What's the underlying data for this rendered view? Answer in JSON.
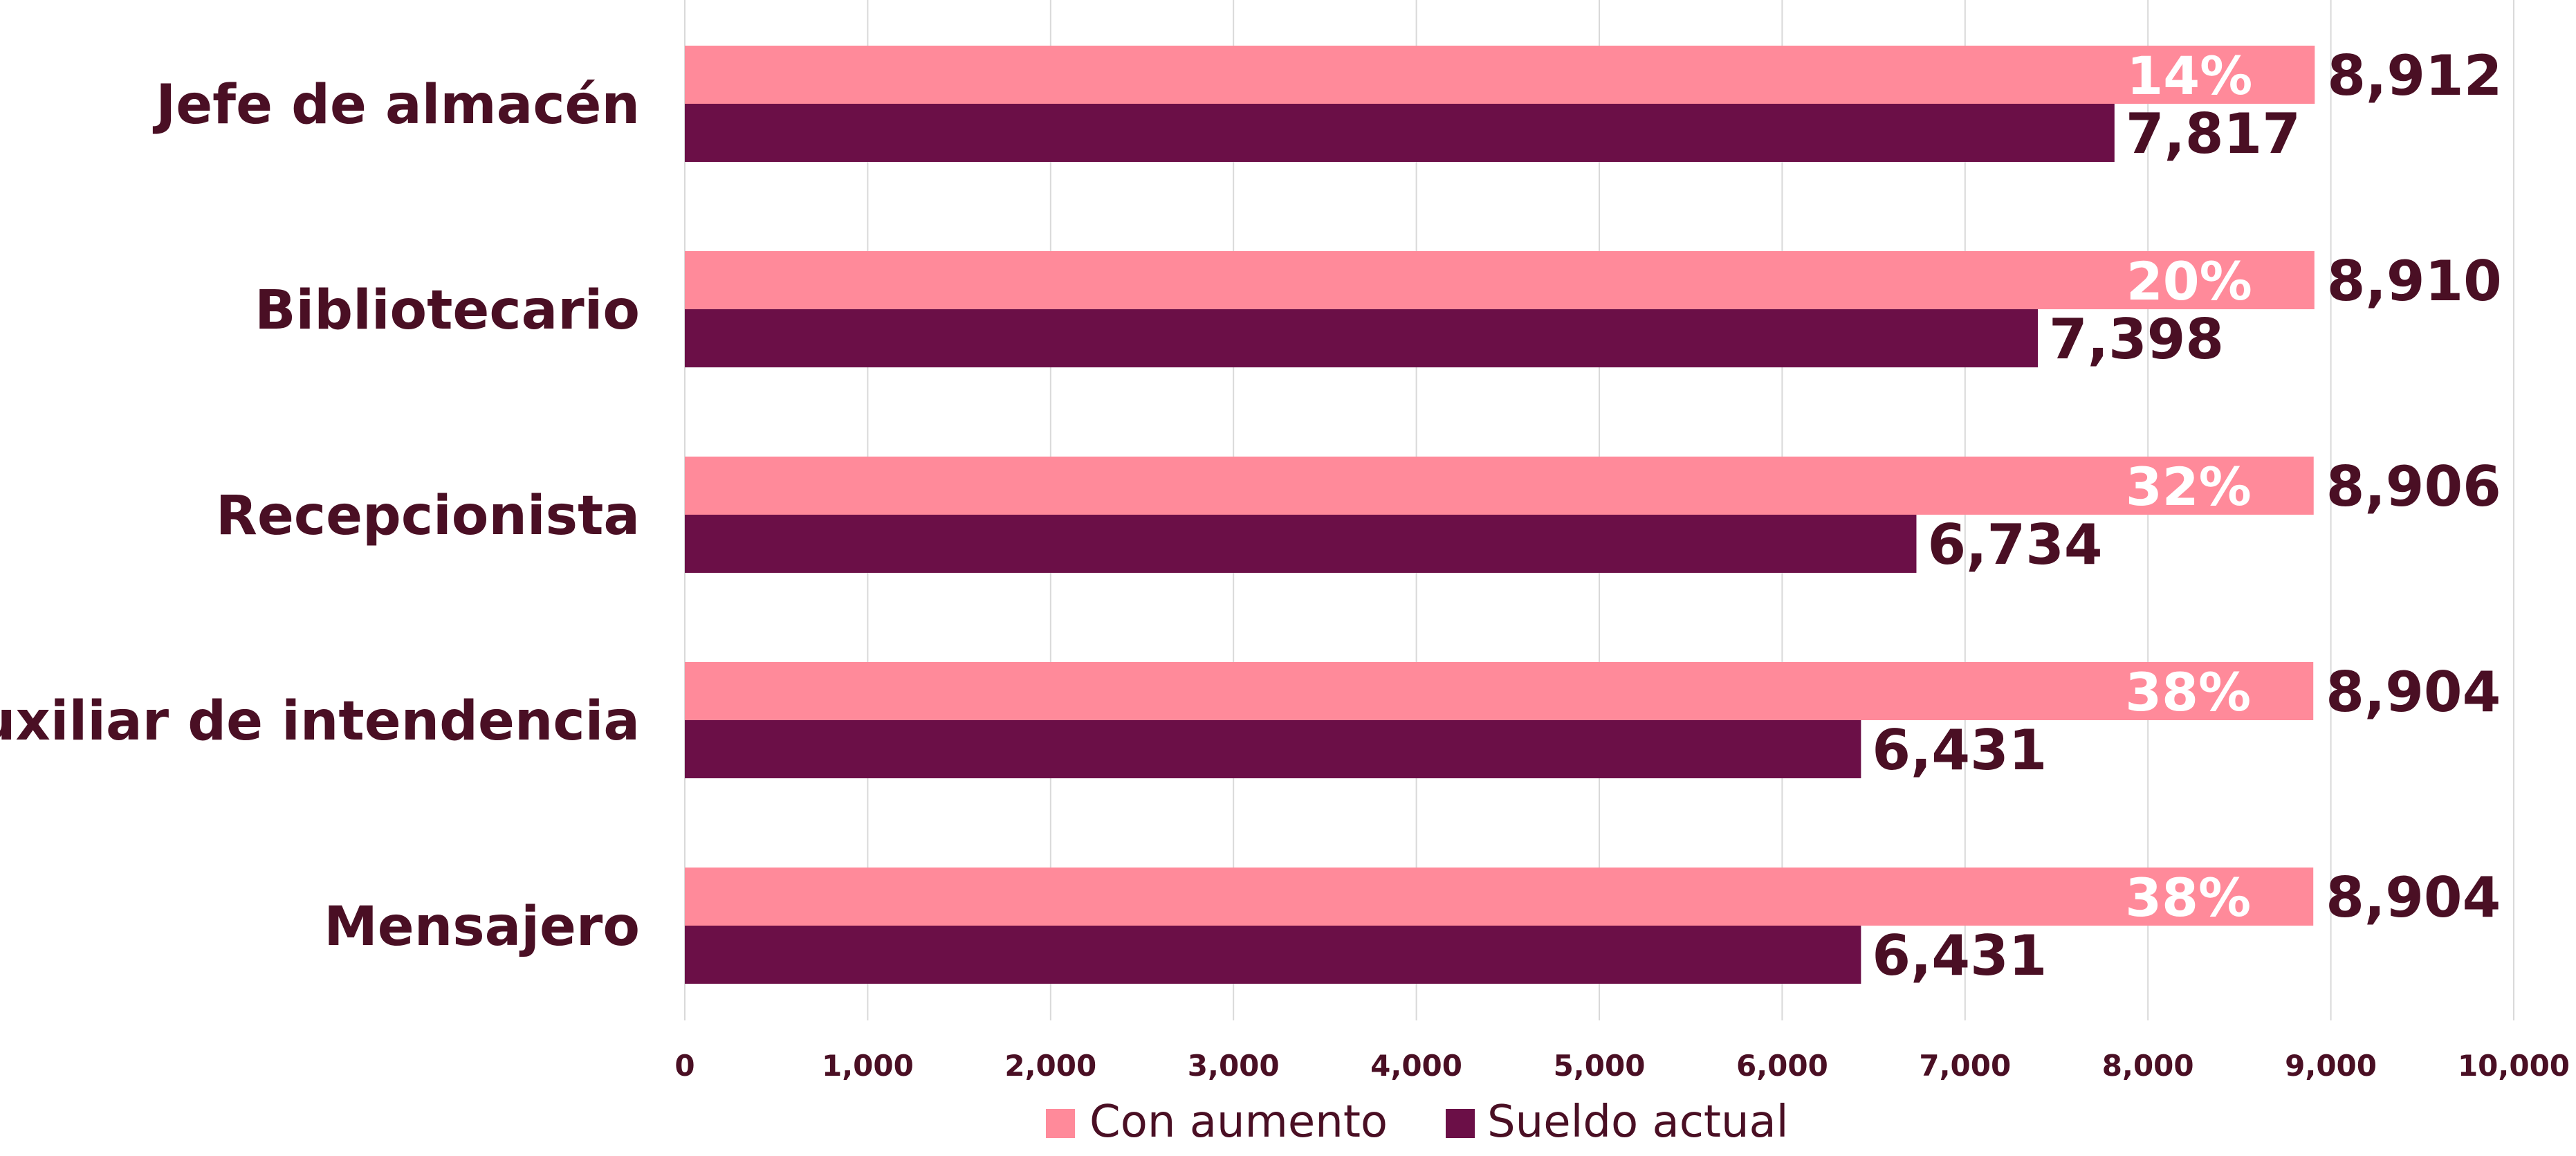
{
  "chart_data": {
    "type": "bar",
    "orientation": "horizontal",
    "categories": [
      "Jefe de almacén",
      "Bibliotecario",
      "Recepcionista",
      "Auxiliar de intendencia",
      "Mensajero"
    ],
    "series": [
      {
        "name": "Con aumento",
        "color": "#ff8a9a",
        "values": [
          8912,
          8910,
          8906,
          8904,
          8904
        ],
        "value_labels": [
          "8,912",
          "8,910",
          "8,906",
          "8,904",
          "8,904"
        ],
        "percent_labels": [
          "14%",
          "20%",
          "32%",
          "38%",
          "38%"
        ]
      },
      {
        "name": "Sueldo actual",
        "color": "#6b0f47",
        "values": [
          7817,
          7398,
          6734,
          6431,
          6431
        ],
        "value_labels": [
          "7,817",
          "7,398",
          "6,734",
          "6,431",
          "6,431"
        ]
      }
    ],
    "xlim": [
      0,
      10000
    ],
    "xticks": [
      0,
      1000,
      2000,
      3000,
      4000,
      5000,
      6000,
      7000,
      8000,
      9000,
      10000
    ],
    "xtick_labels": [
      "0",
      "1,000",
      "2,000",
      "3,000",
      "4,000",
      "5,000",
      "6,000",
      "7,000",
      "8,000",
      "9,000",
      "10,000"
    ],
    "grid": "vertical",
    "legend_position": "bottom-center",
    "text_color": "#4a0f24"
  }
}
